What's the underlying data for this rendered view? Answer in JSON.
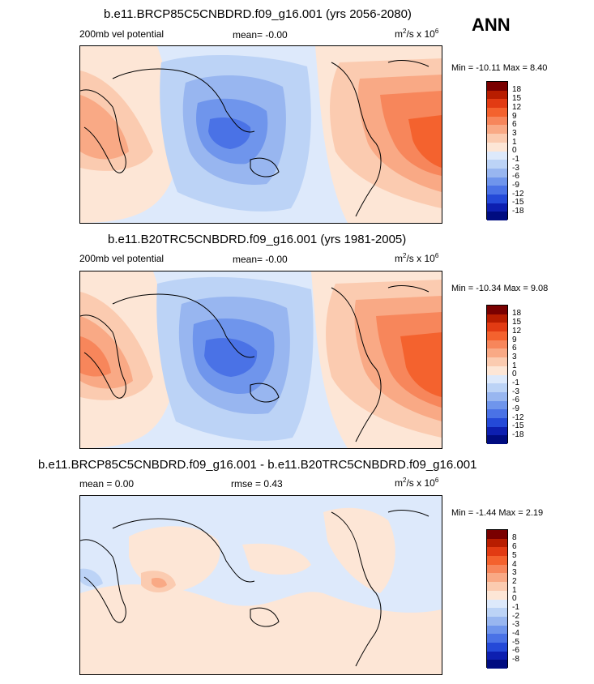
{
  "corner_label": "ANN",
  "panels": [
    {
      "title": "b.e11.BRCP85C5CNBDRD.f09_g16.001 (yrs 2056-2080)",
      "left_label": "200mb vel potential",
      "center_label": "mean=  -0.00",
      "units_main": "m",
      "units_sup1": "2",
      "units_mid": "/s x 10",
      "units_sup2": "6",
      "minmax": "Min = -10.11 Max =   8.40",
      "colorbar_labels": [
        "18",
        "15",
        "12",
        "9",
        "6",
        "3",
        "1",
        "0",
        "-1",
        "-3",
        "-6",
        "-9",
        "-12",
        "-15",
        "-18"
      ]
    },
    {
      "title": "b.e11.B20TRC5CNBDRD.f09_g16.001 (yrs 1981-2005)",
      "left_label": "200mb vel potential",
      "center_label": "mean=  -0.00",
      "units_main": "m",
      "units_sup1": "2",
      "units_mid": "/s x 10",
      "units_sup2": "6",
      "minmax": "Min = -10.34 Max =   9.08",
      "colorbar_labels": [
        "18",
        "15",
        "12",
        "9",
        "6",
        "3",
        "1",
        "0",
        "-1",
        "-3",
        "-6",
        "-9",
        "-12",
        "-15",
        "-18"
      ]
    },
    {
      "title": "b.e11.BRCP85C5CNBDRD.f09_g16.001 - b.e11.B20TRC5CNBDRD.f09_g16.001",
      "left_label": "mean =   0.00",
      "center_label": "rmse =   0.43",
      "units_main": "m",
      "units_sup1": "2",
      "units_mid": "/s x 10",
      "units_sup2": "6",
      "minmax": "Min = -1.44 Max =  2.19",
      "colorbar_labels": [
        "8",
        "6",
        "5",
        "4",
        "3",
        "2",
        "1",
        "0",
        "-1",
        "-2",
        "-3",
        "-4",
        "-5",
        "-6",
        "-8"
      ]
    }
  ],
  "colors": {
    "scale": [
      "#7a0000",
      "#b81d00",
      "#e23b13",
      "#f4622e",
      "#f7865b",
      "#f9a985",
      "#fbcbb0",
      "#fde6d6",
      "#dde9fb",
      "#bcd3f6",
      "#98b6f0",
      "#6f95ec",
      "#4a72e6",
      "#2449d8",
      "#0d1fb0",
      "#000c80"
    ]
  }
}
